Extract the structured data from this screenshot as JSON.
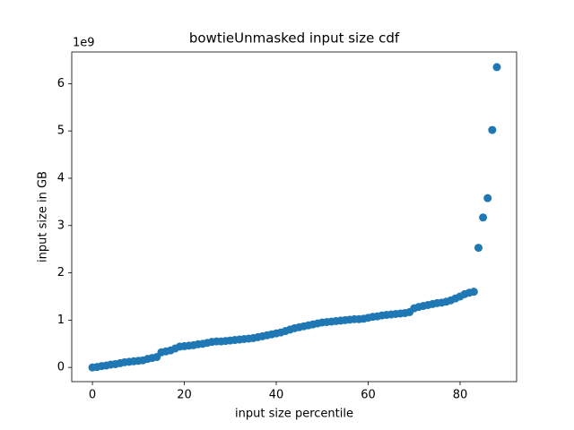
{
  "chart_data": {
    "type": "scatter",
    "title": "bowtieUnmasked input size cdf",
    "xlabel": "input size percentile",
    "ylabel": "input size in GB",
    "y_offset_text": "1e9",
    "color": "#1f77b4",
    "x": [
      0,
      1,
      2,
      3,
      4,
      5,
      6,
      7,
      8,
      9,
      10,
      11,
      12,
      13,
      14,
      15,
      16,
      17,
      18,
      19,
      20,
      21,
      22,
      23,
      24,
      25,
      26,
      27,
      28,
      29,
      30,
      31,
      32,
      33,
      34,
      35,
      36,
      37,
      38,
      39,
      40,
      41,
      42,
      43,
      44,
      45,
      46,
      47,
      48,
      49,
      50,
      51,
      52,
      53,
      54,
      55,
      56,
      57,
      58,
      59,
      60,
      61,
      62,
      63,
      64,
      65,
      66,
      67,
      68,
      69,
      70,
      71,
      72,
      73,
      74,
      75,
      76,
      77,
      78,
      79,
      80,
      81,
      82,
      83,
      84,
      85,
      86,
      87,
      88
    ],
    "values": [
      0.0,
      0.01,
      0.03,
      0.04,
      0.06,
      0.07,
      0.09,
      0.11,
      0.12,
      0.13,
      0.14,
      0.15,
      0.18,
      0.2,
      0.22,
      0.32,
      0.34,
      0.36,
      0.4,
      0.44,
      0.45,
      0.46,
      0.47,
      0.49,
      0.5,
      0.52,
      0.54,
      0.55,
      0.55,
      0.56,
      0.57,
      0.58,
      0.59,
      0.6,
      0.61,
      0.62,
      0.64,
      0.66,
      0.68,
      0.7,
      0.72,
      0.74,
      0.77,
      0.8,
      0.83,
      0.85,
      0.87,
      0.89,
      0.91,
      0.93,
      0.95,
      0.96,
      0.97,
      0.98,
      0.99,
      1.0,
      1.01,
      1.02,
      1.02,
      1.03,
      1.05,
      1.07,
      1.08,
      1.1,
      1.11,
      1.12,
      1.13,
      1.14,
      1.15,
      1.17,
      1.25,
      1.28,
      1.3,
      1.32,
      1.34,
      1.36,
      1.37,
      1.39,
      1.42,
      1.46,
      1.5,
      1.55,
      1.58,
      1.6,
      2.53,
      3.17,
      3.58,
      5.02,
      6.35
    ],
    "xlim": [
      -4.5,
      92.3
    ],
    "ylim": [
      -0.3,
      6.67
    ],
    "xticks": [
      0,
      20,
      40,
      60,
      80
    ],
    "yticks": [
      0,
      1,
      2,
      3,
      4,
      5,
      6
    ]
  }
}
